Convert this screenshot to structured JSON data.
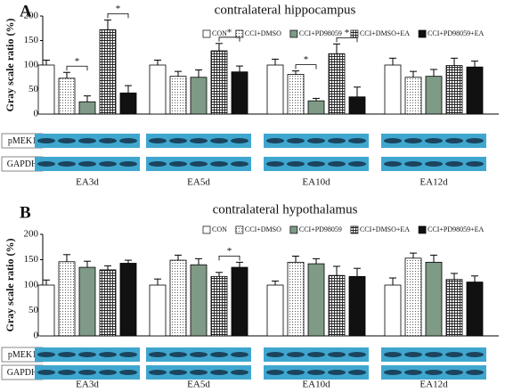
{
  "chart_data": [
    {
      "type": "bar",
      "label": "A",
      "title": "contralateral hippocampus",
      "ylabel": "Gray scale ratio (%)",
      "categories": [
        "EA3d",
        "EA5d",
        "EA10d",
        "EA12d"
      ],
      "ylim": [
        0,
        200
      ],
      "yticks": [
        0,
        50,
        100,
        150,
        200
      ],
      "legend": "top-right",
      "blot_labels": [
        "pMEK1",
        "GAPDH"
      ],
      "series": [
        {
          "name": "CON",
          "color": "#ffffff",
          "values": [
            100,
            100,
            100,
            100
          ],
          "errors": [
            10,
            10,
            12,
            14
          ]
        },
        {
          "name": "CCI+DMSO",
          "color": "#ffffff",
          "pattern": "dots",
          "values": [
            73,
            77,
            81,
            75
          ],
          "errors": [
            12,
            10,
            7,
            12
          ]
        },
        {
          "name": "CCI+PD98059",
          "color": "#7f9a86",
          "values": [
            25,
            75,
            27,
            77
          ],
          "errors": [
            12,
            15,
            5,
            14
          ]
        },
        {
          "name": "CCI+DMSO+EA",
          "color": "#ffffff",
          "pattern": "grid",
          "values": [
            172,
            129,
            123,
            99
          ],
          "errors": [
            20,
            15,
            20,
            15
          ]
        },
        {
          "name": "CCI+PD98059+EA",
          "color": "#111111",
          "values": [
            43,
            86,
            35,
            96
          ],
          "errors": [
            15,
            12,
            20,
            12
          ]
        }
      ],
      "annotations": [
        {
          "category": "EA3d",
          "between": [
            "CCI+DMSO",
            "CCI+PD98059"
          ],
          "text": "*"
        },
        {
          "category": "EA3d",
          "between": [
            "CCI+DMSO+EA",
            "CCI+PD98059+EA"
          ],
          "text": "*"
        },
        {
          "category": "EA5d",
          "between": [
            "CCI+DMSO+EA",
            "CCI+PD98059+EA"
          ],
          "text": "*"
        },
        {
          "category": "EA10d",
          "between": [
            "CCI+DMSO",
            "CCI+PD98059"
          ],
          "text": "*"
        },
        {
          "category": "EA10d",
          "between": [
            "CCI+DMSO+EA",
            "CCI+PD98059+EA"
          ],
          "text": "*"
        }
      ]
    },
    {
      "type": "bar",
      "label": "B",
      "title": "contralateral hypothalamus",
      "ylabel": "Gray scale ratio (%)",
      "categories": [
        "EA3d",
        "EA5d",
        "EA10d",
        "EA12d"
      ],
      "ylim": [
        0,
        200
      ],
      "yticks": [
        0,
        50,
        100,
        150,
        200
      ],
      "legend": "top-right",
      "blot_labels": [
        "pMEK1",
        "GAPDH"
      ],
      "series": [
        {
          "name": "CON",
          "color": "#ffffff",
          "values": [
            100,
            100,
            100,
            100
          ],
          "errors": [
            10,
            12,
            8,
            14
          ]
        },
        {
          "name": "CCI+DMSO",
          "color": "#ffffff",
          "pattern": "dots",
          "values": [
            146,
            149,
            145,
            153
          ],
          "errors": [
            14,
            10,
            12,
            10
          ]
        },
        {
          "name": "CCI+PD98059",
          "color": "#7f9a86",
          "values": [
            135,
            140,
            142,
            145
          ],
          "errors": [
            12,
            12,
            10,
            14
          ]
        },
        {
          "name": "CCI+DMSO+EA",
          "color": "#ffffff",
          "pattern": "grid",
          "values": [
            130,
            117,
            119,
            111
          ],
          "errors": [
            8,
            8,
            18,
            12
          ]
        },
        {
          "name": "CCI+PD98059+EA",
          "color": "#111111",
          "values": [
            143,
            135,
            117,
            106
          ],
          "errors": [
            6,
            10,
            16,
            12
          ]
        }
      ],
      "annotations": [
        {
          "category": "EA5d",
          "between": [
            "CCI+DMSO+EA",
            "CCI+PD98059+EA"
          ],
          "text": "*"
        }
      ]
    }
  ]
}
